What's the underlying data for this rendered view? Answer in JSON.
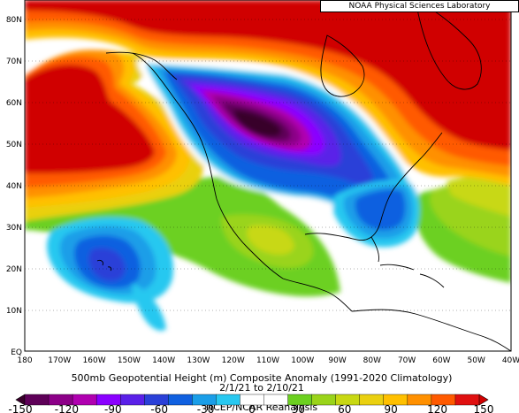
{
  "header": {
    "credit": "NOAA Physical Sciences Laboratory"
  },
  "caption": {
    "line1": "500mb Geopotential Height (m) Composite Anomaly (1991-2020 Climatology)",
    "line2": "2/1/21 to 2/10/21",
    "line3": "NCEP/NCAR Reanalysis"
  },
  "map": {
    "lat_labels": [
      "80N",
      "70N",
      "60N",
      "50N",
      "40N",
      "30N",
      "20N",
      "10N",
      "EQ"
    ],
    "lon_labels": [
      "180",
      "170W",
      "160W",
      "150W",
      "140W",
      "130W",
      "120W",
      "110W",
      "100W",
      "90W",
      "80W",
      "70W",
      "60W",
      "50W",
      "40W"
    ],
    "lon_range": [
      -180,
      -40
    ],
    "lat_range": [
      0,
      85
    ],
    "anomaly_centers": [
      {
        "name": "western-north-america-trough",
        "lon": -113,
        "lat": 55,
        "value": -140
      },
      {
        "name": "eastern-us-trough",
        "lon": -77,
        "lat": 33,
        "value": -80
      },
      {
        "name": "hawaii-low",
        "lon": -158,
        "lat": 22,
        "value": -75
      },
      {
        "name": "alaska-gulf-ridge",
        "lon": -162,
        "lat": 54,
        "value": 150
      },
      {
        "name": "arctic-ridge",
        "lon": -130,
        "lat": 85,
        "value": 150
      },
      {
        "name": "greenland-ridge",
        "lon": -55,
        "lat": 63,
        "value": 150
      },
      {
        "name": "mid-atlantic-ridge",
        "lon": -55,
        "lat": 35,
        "value": 30
      },
      {
        "name": "mexico-ridge",
        "lon": -100,
        "lat": 25,
        "value": 15
      }
    ]
  },
  "colorbar": {
    "tick_labels": [
      "-150",
      "-120",
      "-90",
      "-60",
      "-30",
      "0",
      "30",
      "60",
      "90",
      "120",
      "150"
    ],
    "colors": [
      "#38002a",
      "#5e0058",
      "#8c0088",
      "#b000b0",
      "#8a00ff",
      "#5a20e8",
      "#2a40d8",
      "#1060e0",
      "#1a9ee8",
      "#28c8f0",
      "#ffffff",
      "#ffffff",
      "#6cd020",
      "#9ad41a",
      "#c8d812",
      "#ead010",
      "#ffc000",
      "#ff9000",
      "#ff5a00",
      "#e01010",
      "#d00000"
    ]
  }
}
